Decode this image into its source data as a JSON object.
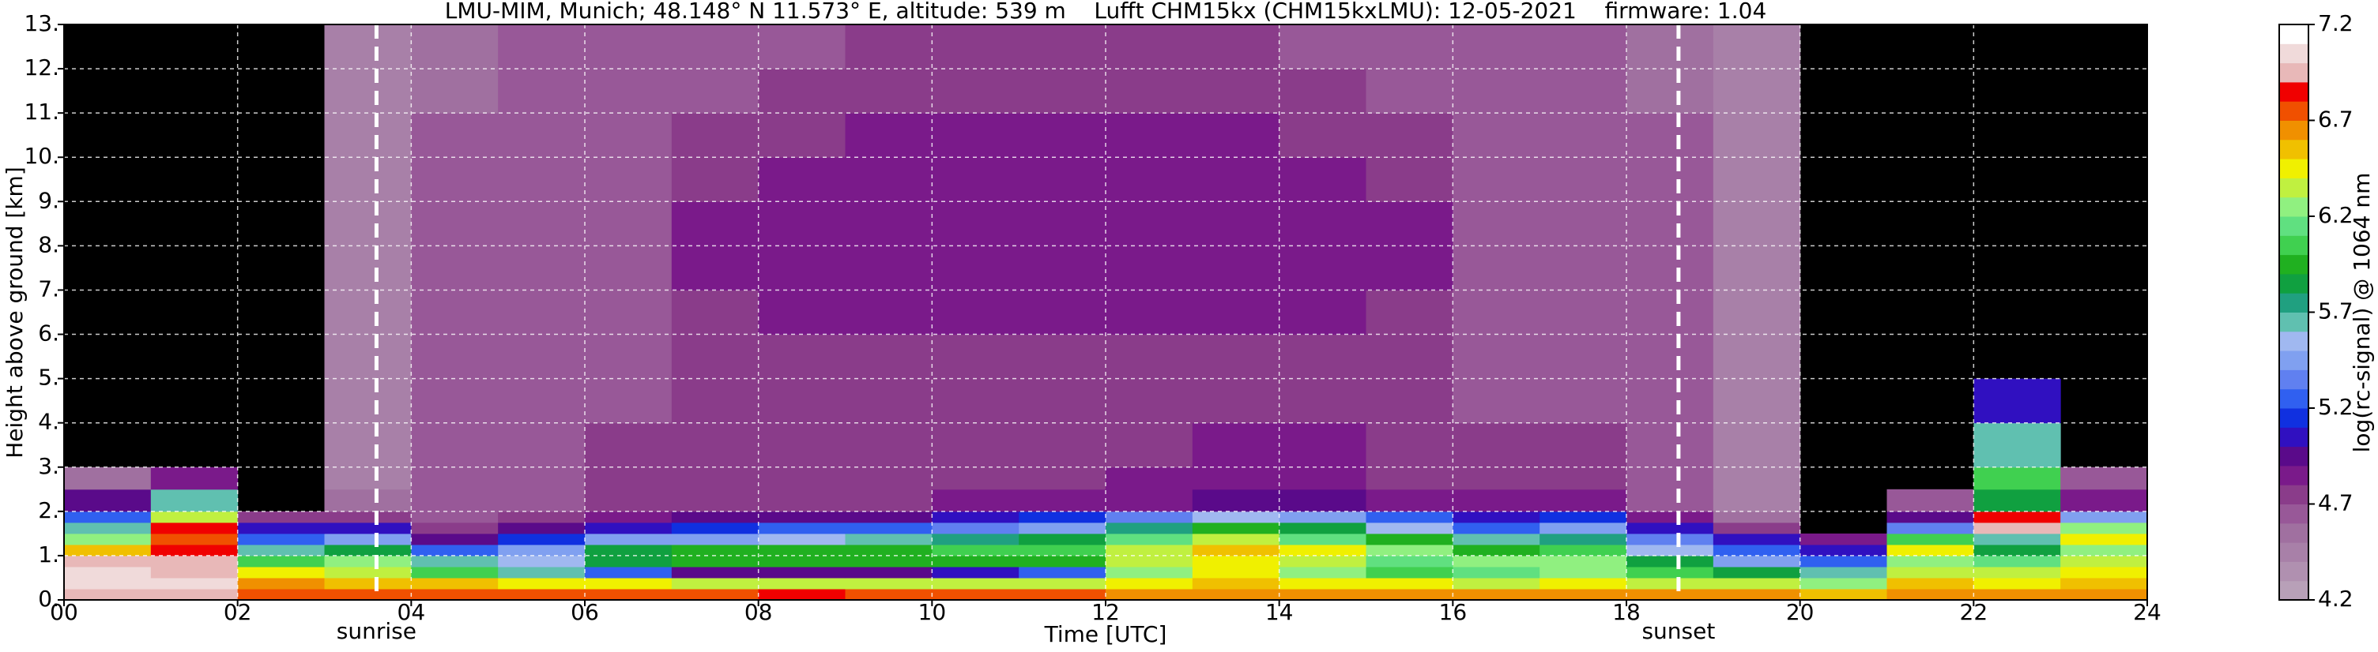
{
  "chart_data": {
    "type": "heatmap",
    "title": "LMU-MIM, Munich; 48.148° N 11.573° E, altitude: 539 m    Lufft CHM15kx (CHM15kxLMU): 12-05-2021    firmware: 1.04",
    "xlabel": "Time [UTC]",
    "ylabel": "Height above ground [km]",
    "xlim": [
      0,
      24
    ],
    "ylim": [
      0,
      13
    ],
    "xticks": [
      {
        "value": 0,
        "label": "00"
      },
      {
        "value": 2,
        "label": "02"
      },
      {
        "value": 4,
        "label": "04"
      },
      {
        "value": 6,
        "label": "06"
      },
      {
        "value": 8,
        "label": "08"
      },
      10,
      12,
      14,
      16,
      18,
      20,
      22,
      24
    ],
    "yticks": [
      {
        "value": 0,
        "label": "0."
      },
      {
        "value": 1,
        "label": "1."
      },
      {
        "value": 2,
        "label": "2."
      },
      {
        "value": 3,
        "label": "3."
      },
      {
        "value": 4,
        "label": "4."
      },
      {
        "value": 5,
        "label": "5."
      },
      {
        "value": 6,
        "label": "6."
      },
      {
        "value": 7,
        "label": "7."
      },
      {
        "value": 8,
        "label": "8."
      },
      {
        "value": 9,
        "label": "9."
      },
      {
        "value": 10,
        "label": "10."
      },
      {
        "value": 11,
        "label": "11."
      },
      {
        "value": 12,
        "label": "12."
      },
      {
        "value": 13,
        "label": "13."
      }
    ],
    "grid": true,
    "x": [
      0,
      1,
      2,
      3,
      4,
      5,
      6,
      7,
      8,
      9,
      10,
      11,
      12,
      13,
      14,
      15,
      16,
      17,
      18,
      19,
      20,
      21,
      22,
      23,
      24
    ],
    "y": [
      0,
      0.25,
      0.5,
      0.75,
      1,
      1.25,
      1.5,
      1.75,
      2,
      2.5,
      3,
      4,
      5,
      6,
      7,
      8,
      9,
      10,
      11,
      12,
      13
    ],
    "z": [
      [
        6.9,
        6.9,
        6.7,
        6.7,
        6.7,
        6.7,
        6.7,
        6.7,
        6.8,
        6.7,
        6.7,
        6.7,
        6.6,
        6.6,
        6.6,
        6.6,
        6.6,
        6.6,
        6.6,
        6.6,
        6.5,
        6.6,
        6.6,
        6.6
      ],
      [
        7.0,
        7.0,
        6.6,
        6.5,
        6.5,
        6.4,
        6.4,
        6.3,
        6.3,
        6.3,
        6.3,
        6.3,
        6.4,
        6.5,
        6.4,
        6.4,
        6.3,
        6.4,
        6.3,
        6.3,
        6.2,
        6.5,
        6.4,
        6.5
      ],
      [
        7.0,
        6.9,
        6.4,
        6.3,
        6.0,
        5.6,
        5.2,
        4.9,
        4.9,
        4.9,
        5.0,
        5.2,
        6.2,
        6.4,
        6.2,
        6.0,
        6.1,
        6.2,
        6.0,
        5.8,
        5.6,
        6.3,
        6.3,
        6.4
      ],
      [
        6.9,
        6.9,
        6.0,
        6.2,
        5.6,
        5.5,
        5.8,
        5.9,
        5.9,
        5.9,
        5.9,
        5.9,
        6.3,
        6.4,
        6.3,
        6.1,
        6.2,
        6.2,
        5.8,
        5.4,
        5.2,
        6.2,
        6.1,
        6.3
      ],
      [
        6.5,
        6.8,
        5.6,
        5.8,
        5.2,
        5.4,
        5.8,
        5.9,
        5.9,
        5.9,
        6.0,
        6.0,
        6.3,
        6.5,
        6.4,
        6.2,
        5.9,
        6.0,
        5.5,
        5.2,
        5.0,
        6.4,
        5.8,
        6.2
      ],
      [
        6.2,
        6.7,
        5.2,
        5.4,
        4.9,
        5.1,
        5.4,
        5.4,
        5.5,
        5.6,
        5.7,
        5.8,
        6.1,
        6.3,
        6.1,
        5.9,
        5.6,
        5.7,
        5.3,
        5.0,
        4.8,
        6.0,
        5.6,
        6.4
      ],
      [
        5.6,
        6.8,
        5.0,
        5.0,
        4.7,
        4.9,
        5.0,
        5.1,
        5.2,
        5.2,
        5.3,
        5.4,
        5.7,
        5.9,
        5.8,
        5.5,
        5.2,
        5.4,
        5.0,
        4.7,
        null,
        5.3,
        6.9,
        6.2
      ],
      [
        5.2,
        6.3,
        4.7,
        4.7,
        4.6,
        4.7,
        4.8,
        4.9,
        4.9,
        4.9,
        5.0,
        5.1,
        5.3,
        5.5,
        5.4,
        5.2,
        5.0,
        5.1,
        4.8,
        4.5,
        null,
        4.9,
        6.8,
        5.4
      ],
      [
        4.9,
        5.6,
        null,
        4.5,
        4.6,
        4.6,
        4.7,
        4.7,
        4.7,
        4.7,
        4.8,
        4.8,
        4.8,
        4.9,
        4.9,
        4.8,
        4.8,
        4.8,
        4.6,
        4.4,
        null,
        4.6,
        5.8,
        4.8
      ],
      [
        4.5,
        4.8,
        null,
        4.4,
        4.6,
        4.6,
        4.7,
        4.7,
        4.7,
        4.7,
        4.7,
        4.7,
        4.8,
        4.8,
        4.8,
        4.7,
        4.7,
        4.7,
        4.6,
        4.4,
        null,
        null,
        6.0,
        4.6
      ],
      [
        null,
        null,
        null,
        4.4,
        4.6,
        4.6,
        4.7,
        4.7,
        4.7,
        4.7,
        4.7,
        4.7,
        4.7,
        4.8,
        4.8,
        4.7,
        4.7,
        4.7,
        4.6,
        4.4,
        null,
        null,
        5.6,
        null
      ],
      [
        null,
        null,
        null,
        4.4,
        4.6,
        4.6,
        4.6,
        4.7,
        4.7,
        4.7,
        4.7,
        4.7,
        4.7,
        4.7,
        4.7,
        4.7,
        4.6,
        4.6,
        4.6,
        4.4,
        null,
        null,
        5.0,
        null
      ],
      [
        null,
        null,
        null,
        4.4,
        4.6,
        4.6,
        4.6,
        4.7,
        4.7,
        4.7,
        4.7,
        4.7,
        4.7,
        4.7,
        4.7,
        4.7,
        4.6,
        4.6,
        4.6,
        4.4,
        null,
        null,
        null,
        null
      ],
      [
        null,
        null,
        null,
        4.4,
        4.6,
        4.6,
        4.6,
        4.7,
        4.8,
        4.8,
        4.8,
        4.8,
        4.8,
        4.8,
        4.8,
        4.7,
        4.6,
        4.6,
        4.6,
        4.4,
        null,
        null,
        null,
        null
      ],
      [
        null,
        null,
        null,
        4.4,
        4.6,
        4.6,
        4.6,
        4.8,
        4.8,
        4.8,
        4.8,
        4.8,
        4.8,
        4.8,
        4.8,
        4.8,
        4.6,
        4.6,
        4.6,
        4.4,
        null,
        null,
        null,
        null
      ],
      [
        null,
        null,
        null,
        4.4,
        4.6,
        4.6,
        4.6,
        4.8,
        4.8,
        4.8,
        4.8,
        4.8,
        4.8,
        4.8,
        4.8,
        4.8,
        4.6,
        4.6,
        4.6,
        4.4,
        null,
        null,
        null,
        null
      ],
      [
        null,
        null,
        null,
        4.4,
        4.6,
        4.6,
        4.6,
        4.7,
        4.8,
        4.8,
        4.8,
        4.8,
        4.8,
        4.8,
        4.8,
        4.7,
        4.6,
        4.6,
        4.6,
        4.4,
        null,
        null,
        null,
        null
      ],
      [
        null,
        null,
        null,
        4.4,
        4.6,
        4.6,
        4.6,
        4.7,
        4.7,
        4.8,
        4.8,
        4.8,
        4.8,
        4.8,
        4.7,
        4.7,
        4.6,
        4.6,
        4.6,
        4.4,
        null,
        null,
        null,
        null
      ],
      [
        null,
        null,
        null,
        4.4,
        4.5,
        4.6,
        4.6,
        4.6,
        4.7,
        4.7,
        4.7,
        4.7,
        4.7,
        4.7,
        4.7,
        4.6,
        4.6,
        4.6,
        4.5,
        4.4,
        null,
        null,
        null,
        null
      ],
      [
        null,
        null,
        null,
        4.4,
        4.5,
        4.6,
        4.6,
        4.6,
        4.6,
        4.7,
        4.7,
        4.7,
        4.7,
        4.7,
        4.6,
        4.6,
        4.6,
        4.6,
        4.5,
        4.4,
        null,
        null,
        null,
        null
      ]
    ],
    "annotations": [
      {
        "x": 3.6,
        "label": "sunrise"
      },
      {
        "x": 18.6,
        "label": "sunset"
      }
    ],
    "colorbar": {
      "label": "log(rc-signal) @ 1064 nm",
      "clim": [
        4.2,
        7.2
      ],
      "ticks": [
        4.2,
        4.7,
        5.2,
        5.7,
        6.2,
        6.7,
        7.2
      ],
      "colors": [
        "#b8a0b8",
        "#b090b0",
        "#a880a8",
        "#a070a0",
        "#985898",
        "#8a3c8a",
        "#7a1a8a",
        "#5a0a8a",
        "#3010c0",
        "#1030e0",
        "#3060f0",
        "#6080f0",
        "#80a0f0",
        "#a0b8f0",
        "#60c0b0",
        "#20a080",
        "#10a040",
        "#20b020",
        "#40d050",
        "#60e080",
        "#90f080",
        "#c0f040",
        "#f0f000",
        "#f0c000",
        "#f09000",
        "#f05000",
        "#f00000",
        "#e8b8b8",
        "#f0dada",
        "#ffffff"
      ]
    }
  }
}
